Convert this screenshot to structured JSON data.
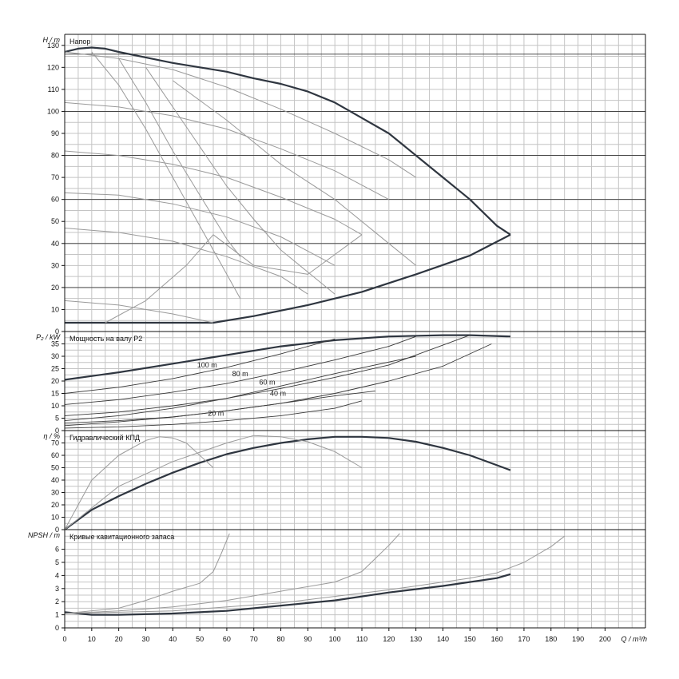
{
  "chart_data": [
    {
      "type": "line",
      "panel": "head",
      "title": "Напор",
      "ylabel_symbol": "H",
      "ylabel_unit": "m",
      "ylim": [
        0,
        135
      ],
      "yticks": [
        0,
        10,
        20,
        30,
        40,
        50,
        60,
        70,
        80,
        90,
        100,
        110,
        120,
        130
      ],
      "major_hlines": [
        20,
        40,
        60,
        80,
        100,
        126
      ],
      "series": [
        {
          "style": "bold",
          "x": [
            0,
            5,
            10,
            15,
            20,
            30,
            40,
            50,
            60,
            70,
            80,
            90,
            100,
            110,
            120,
            130,
            140,
            150,
            160,
            165
          ],
          "y": [
            127,
            128.5,
            129,
            128.5,
            127,
            124.5,
            122,
            120,
            118,
            115,
            112.5,
            109,
            104,
            97,
            90,
            80,
            70,
            60,
            48,
            44
          ]
        },
        {
          "style": "bold",
          "x": [
            0,
            20,
            40,
            55,
            70,
            90,
            110,
            130,
            150,
            165
          ],
          "y": [
            4,
            4,
            4,
            4,
            7,
            12,
            18,
            26,
            34.5,
            44
          ]
        },
        {
          "style": "thin",
          "x": [
            0,
            20,
            40,
            60,
            80,
            100,
            120,
            130
          ],
          "y": [
            127,
            124,
            119,
            111,
            101,
            90,
            78,
            70
          ]
        },
        {
          "style": "thin",
          "x": [
            0,
            20,
            40,
            60,
            80,
            100,
            120
          ],
          "y": [
            104,
            102,
            98,
            92,
            83,
            73,
            60
          ]
        },
        {
          "style": "thin",
          "x": [
            0,
            20,
            40,
            60,
            80,
            100,
            110
          ],
          "y": [
            82,
            80,
            76,
            70,
            61,
            51,
            44
          ]
        },
        {
          "style": "thin",
          "x": [
            0,
            20,
            40,
            60,
            80,
            100
          ],
          "y": [
            63,
            62,
            58,
            52,
            43,
            30
          ]
        },
        {
          "style": "thin",
          "x": [
            0,
            20,
            40,
            60,
            80,
            90
          ],
          "y": [
            47,
            45,
            41,
            34,
            25,
            17
          ]
        },
        {
          "style": "thin",
          "x": [
            0,
            20,
            40,
            55
          ],
          "y": [
            14,
            12,
            8,
            4
          ]
        },
        {
          "style": "thin",
          "x": [
            15,
            30,
            45,
            55,
            70,
            90,
            110
          ],
          "y": [
            4,
            14,
            30,
            44,
            30,
            26,
            44
          ]
        },
        {
          "style": "thin",
          "x": [
            10,
            20,
            30,
            40,
            50,
            60,
            65
          ],
          "y": [
            127,
            112,
            92,
            70,
            48,
            26,
            15
          ]
        },
        {
          "style": "thin",
          "x": [
            20,
            30,
            40,
            50,
            60,
            65
          ],
          "y": [
            124,
            104,
            82,
            62,
            42,
            34
          ]
        },
        {
          "style": "thin",
          "x": [
            30,
            40,
            50,
            60,
            70,
            80,
            90,
            100
          ],
          "y": [
            120,
            102,
            84,
            66,
            51,
            37,
            27,
            17
          ]
        },
        {
          "style": "thin",
          "x": [
            40,
            60,
            80,
            100,
            120,
            130
          ],
          "y": [
            114,
            96,
            76,
            60,
            40,
            30
          ]
        }
      ]
    },
    {
      "type": "line",
      "panel": "power",
      "title": "Мощность на валу P2",
      "ylabel_symbol": "P₂",
      "ylabel_unit": "kW",
      "ylim": [
        0,
        40
      ],
      "yticks": [
        0,
        5,
        10,
        15,
        20,
        25,
        30,
        35
      ],
      "annotations": [
        {
          "text": "100 m",
          "x": 49,
          "y": 25.5
        },
        {
          "text": "80 m",
          "x": 62,
          "y": 22
        },
        {
          "text": "60 m",
          "x": 72,
          "y": 18.5
        },
        {
          "text": "40 m",
          "x": 76,
          "y": 14
        },
        {
          "text": "20 m",
          "x": 53,
          "y": 6
        }
      ],
      "series": [
        {
          "style": "bold",
          "x": [
            0,
            20,
            40,
            60,
            80,
            100,
            120,
            140,
            150,
            165
          ],
          "y": [
            20.5,
            23.5,
            27,
            30.5,
            34,
            36.5,
            38,
            38.5,
            38.5,
            38
          ]
        },
        {
          "style": "thin",
          "x": [
            0,
            20,
            40,
            60,
            80,
            100
          ],
          "y": [
            15,
            17.5,
            21,
            25.5,
            31,
            37
          ]
        },
        {
          "style": "thin",
          "x": [
            0,
            20,
            40,
            60,
            80,
            100,
            120,
            130
          ],
          "y": [
            10.5,
            12.5,
            15.5,
            19,
            23.5,
            28.5,
            34,
            38
          ]
        },
        {
          "style": "thin",
          "x": [
            0,
            20,
            40,
            60,
            80,
            100,
            120,
            150
          ],
          "y": [
            6,
            7.5,
            10,
            13,
            17,
            21.5,
            26.5,
            38.5
          ]
        },
        {
          "style": "thin",
          "x": [
            0,
            20,
            40,
            60,
            80,
            100,
            120,
            140,
            158
          ],
          "y": [
            3,
            4,
            5.5,
            8,
            11,
            15,
            20,
            26,
            35
          ]
        },
        {
          "style": "thin",
          "x": [
            0,
            20,
            40,
            60,
            80,
            100,
            110
          ],
          "y": [
            1,
            1.5,
            2.5,
            4,
            6,
            9,
            12
          ]
        },
        {
          "style": "thin",
          "x": [
            0,
            20,
            40,
            60,
            80,
            100,
            130
          ],
          "y": [
            4,
            6,
            9,
            13,
            18,
            23,
            30
          ]
        },
        {
          "style": "thin",
          "x": [
            0,
            20,
            40,
            60,
            80,
            100,
            115
          ],
          "y": [
            2,
            3.5,
            5.5,
            8,
            11,
            14,
            16
          ]
        }
      ]
    },
    {
      "type": "line",
      "panel": "efficiency",
      "title": "Гидравлический КПД",
      "ylabel_symbol": "η",
      "ylabel_unit": "%",
      "ylim": [
        0,
        80
      ],
      "yticks": [
        0,
        10,
        20,
        30,
        40,
        50,
        60,
        70
      ],
      "series": [
        {
          "style": "bold",
          "x": [
            0,
            10,
            20,
            30,
            40,
            50,
            60,
            70,
            80,
            90,
            100,
            110,
            120,
            130,
            140,
            150,
            160,
            165
          ],
          "y": [
            0,
            16,
            27,
            37,
            46,
            54,
            61,
            66,
            70,
            73,
            75,
            75,
            74,
            71,
            66,
            60,
            52,
            48
          ]
        },
        {
          "style": "thin",
          "x": [
            0,
            10,
            20,
            30,
            35,
            40,
            45,
            55
          ],
          "y": [
            0,
            40,
            60,
            72,
            75,
            74,
            70,
            50
          ]
        },
        {
          "style": "thin",
          "x": [
            0,
            20,
            40,
            60,
            70,
            80,
            90,
            100,
            110
          ],
          "y": [
            0,
            35,
            55,
            70,
            76,
            75,
            71,
            63,
            50
          ]
        }
      ]
    },
    {
      "type": "line",
      "panel": "npsh",
      "title": "Кривые кавитационного запаса",
      "ylabel_symbol": "NPSH",
      "ylabel_unit": "m",
      "ylim": [
        0,
        7.5
      ],
      "yticks": [
        0,
        1,
        2,
        3,
        4,
        5,
        6
      ],
      "xlabel_symbol": "Q",
      "xlabel_unit": "m³/h",
      "xlim": [
        0,
        215
      ],
      "xticks": [
        0,
        10,
        20,
        30,
        40,
        50,
        60,
        70,
        80,
        90,
        100,
        110,
        120,
        130,
        140,
        150,
        160,
        170,
        180,
        190,
        200
      ],
      "series": [
        {
          "style": "bold",
          "x": [
            0,
            10,
            20,
            40,
            60,
            80,
            100,
            120,
            140,
            160,
            165
          ],
          "y": [
            1.2,
            1.0,
            1.0,
            1.1,
            1.3,
            1.7,
            2.1,
            2.7,
            3.2,
            3.8,
            4.1
          ]
        },
        {
          "style": "thin",
          "x": [
            0,
            20,
            30,
            40,
            50,
            55,
            58,
            61
          ],
          "y": [
            1.1,
            1.5,
            2.1,
            2.8,
            3.4,
            4.3,
            5.7,
            7.2
          ]
        },
        {
          "style": "thin",
          "x": [
            0,
            20,
            40,
            60,
            80,
            100,
            110,
            115,
            120,
            124
          ],
          "y": [
            1.1,
            1.3,
            1.6,
            2.1,
            2.8,
            3.5,
            4.3,
            5.3,
            6.3,
            7.2
          ]
        },
        {
          "style": "thin",
          "x": [
            0,
            40,
            80,
            120,
            150,
            160,
            170,
            180,
            185
          ],
          "y": [
            1.1,
            1.3,
            1.9,
            2.9,
            3.8,
            4.2,
            5.0,
            6.2,
            7.0
          ]
        }
      ]
    }
  ]
}
